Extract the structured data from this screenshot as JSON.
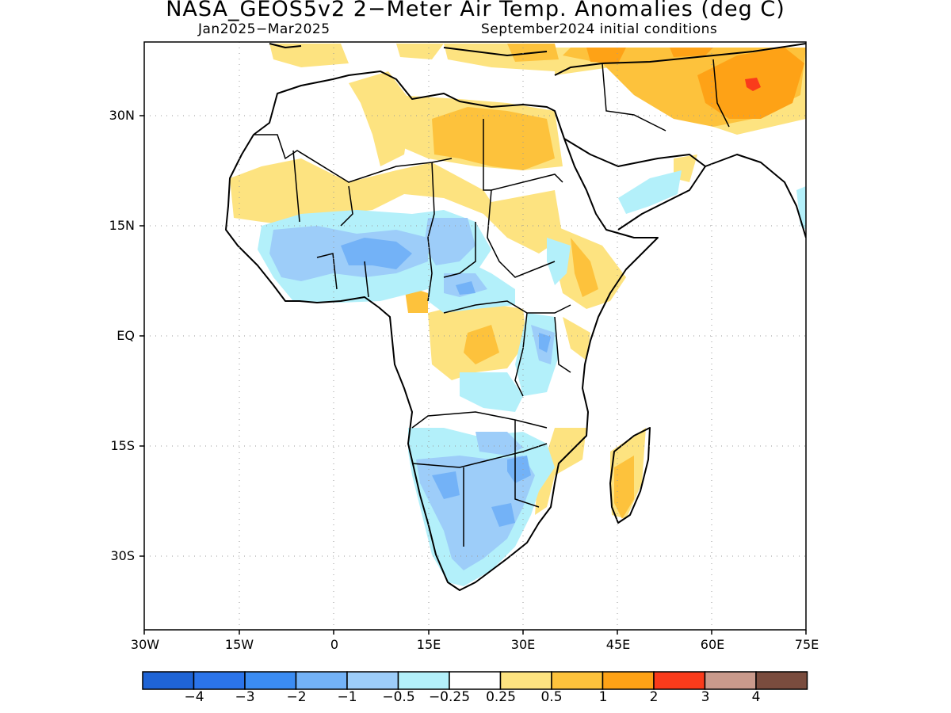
{
  "title": "NASA_GEOS5v2 2−Meter Air Temp. Anomalies (deg C)",
  "subtitle_left": "Jan2025−Mar2025",
  "subtitle_right": "September2024 initial conditions",
  "lat_labels": [
    "30N",
    "15N",
    "EQ",
    "15S",
    "30S"
  ],
  "lon_labels": [
    "30W",
    "15W",
    "0",
    "15E",
    "30E",
    "45E",
    "60E",
    "75E"
  ],
  "colorbar": {
    "labels": [
      "−4",
      "−3",
      "−2",
      "−1",
      "−0.5",
      "−0.25",
      "0.25",
      "0.5",
      "1",
      "2",
      "3",
      "4"
    ],
    "colors": [
      "#1f64d6",
      "#2b74ea",
      "#3b8cf2",
      "#73b2f7",
      "#9dcdf9",
      "#b3f0fa",
      "#ffffff",
      "#fde380",
      "#fdc23c",
      "#fea216",
      "#fa3b1b",
      "#c99a8c",
      "#7a4c3e"
    ]
  },
  "palette": {
    "ocean": "#ffffff",
    "coast": "#000000"
  }
}
